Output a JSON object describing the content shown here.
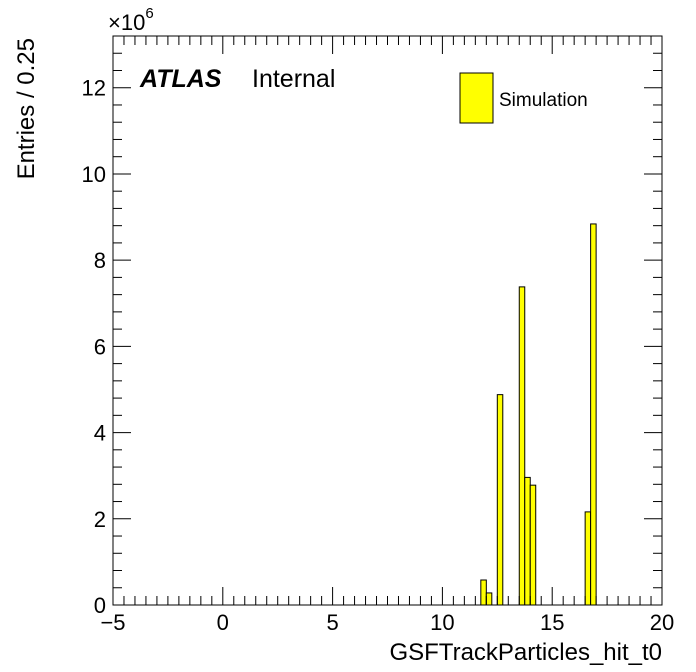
{
  "chart_data": {
    "type": "bar",
    "histogram": true,
    "xlabel": "GSFTrackParticles_hit_t0",
    "ylabel": "Entries / 0.25",
    "y_exponent_base": "×10",
    "y_exponent_power": "6",
    "y_multiplier": 1000000,
    "xlim": [
      -5,
      20
    ],
    "ylim": [
      0,
      13.2
    ],
    "x_ticks": [
      -5,
      0,
      5,
      10,
      15,
      20
    ],
    "x_tick_labels": [
      "−5",
      "0",
      "5",
      "10",
      "15",
      "20"
    ],
    "y_ticks": [
      0,
      2,
      4,
      6,
      8,
      10,
      12
    ],
    "y_tick_labels": [
      "0",
      "2",
      "4",
      "6",
      "8",
      "10",
      "12"
    ],
    "bin_width": 0.25,
    "bins": [
      {
        "x_low": 11.75,
        "value": 0.58
      },
      {
        "x_low": 12.0,
        "value": 0.28
      },
      {
        "x_low": 12.5,
        "value": 4.88
      },
      {
        "x_low": 13.5,
        "value": 7.38
      },
      {
        "x_low": 13.75,
        "value": 2.96
      },
      {
        "x_low": 14.0,
        "value": 2.78
      },
      {
        "x_low": 16.5,
        "value": 2.16
      },
      {
        "x_low": 16.75,
        "value": 8.84
      }
    ],
    "fill_color": "#ffff00",
    "line_color": "#000000",
    "legend": {
      "entries": [
        "Simulation"
      ],
      "position": "top-right"
    },
    "label": {
      "atlas": "ATLAS",
      "status": "Internal"
    }
  }
}
